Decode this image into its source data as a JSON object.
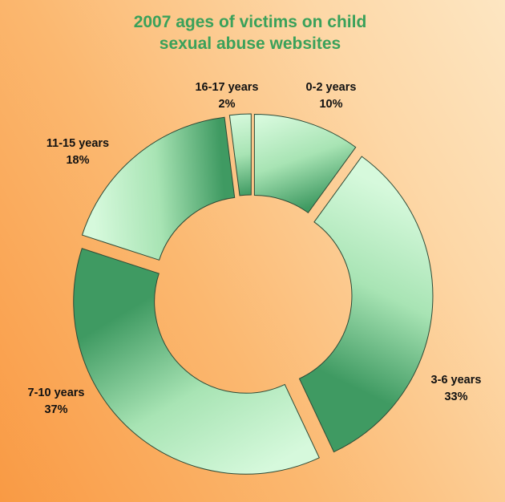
{
  "chart_data": {
    "type": "pie",
    "title": [
      "2007 ages of victims on child",
      "sexual abuse websites"
    ],
    "colors": {
      "title": "#3aa15a",
      "slice_light": "#d6f9dc",
      "slice_mid": "#a8e4b4",
      "slice_dark": "#3f9a62",
      "slice_stroke": "#2c4a36"
    },
    "series": [
      {
        "label": "0-2 years",
        "value": 10,
        "value_label": "10%"
      },
      {
        "label": "3-6 years",
        "value": 33,
        "value_label": "33%"
      },
      {
        "label": "7-10 years",
        "value": 37,
        "value_label": "37%"
      },
      {
        "label": "11-15 years",
        "value": 18,
        "value_label": "18%"
      },
      {
        "label": "16-17 years",
        "value": 2,
        "value_label": "2%"
      }
    ]
  }
}
